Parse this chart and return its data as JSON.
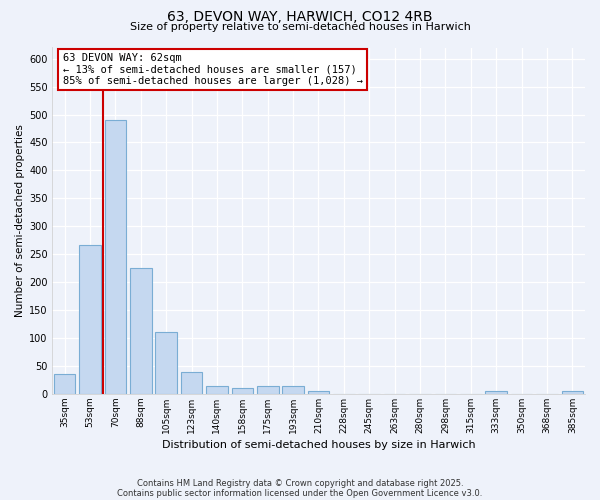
{
  "title_line1": "63, DEVON WAY, HARWICH, CO12 4RB",
  "title_line2": "Size of property relative to semi-detached houses in Harwich",
  "xlabel": "Distribution of semi-detached houses by size in Harwich",
  "ylabel": "Number of semi-detached properties",
  "categories": [
    "35sqm",
    "53sqm",
    "70sqm",
    "88sqm",
    "105sqm",
    "123sqm",
    "140sqm",
    "158sqm",
    "175sqm",
    "193sqm",
    "210sqm",
    "228sqm",
    "245sqm",
    "263sqm",
    "280sqm",
    "298sqm",
    "315sqm",
    "333sqm",
    "350sqm",
    "368sqm",
    "385sqm"
  ],
  "values": [
    35,
    267,
    490,
    225,
    110,
    40,
    15,
    10,
    15,
    14,
    6,
    0,
    0,
    0,
    0,
    0,
    0,
    5,
    0,
    0,
    5
  ],
  "bar_color": "#c5d8f0",
  "bar_edge_color": "#7aadd4",
  "vline_color": "#cc0000",
  "annotation_text": "63 DEVON WAY: 62sqm\n← 13% of semi-detached houses are smaller (157)\n85% of semi-detached houses are larger (1,028) →",
  "annotation_box_color": "#ffffff",
  "annotation_box_edge": "#cc0000",
  "ylim": [
    0,
    620
  ],
  "yticks": [
    0,
    50,
    100,
    150,
    200,
    250,
    300,
    350,
    400,
    450,
    500,
    550,
    600
  ],
  "background_color": "#eef2fa",
  "grid_color": "#ffffff",
  "footnote_line1": "Contains HM Land Registry data © Crown copyright and database right 2025.",
  "footnote_line2": "Contains public sector information licensed under the Open Government Licence v3.0."
}
